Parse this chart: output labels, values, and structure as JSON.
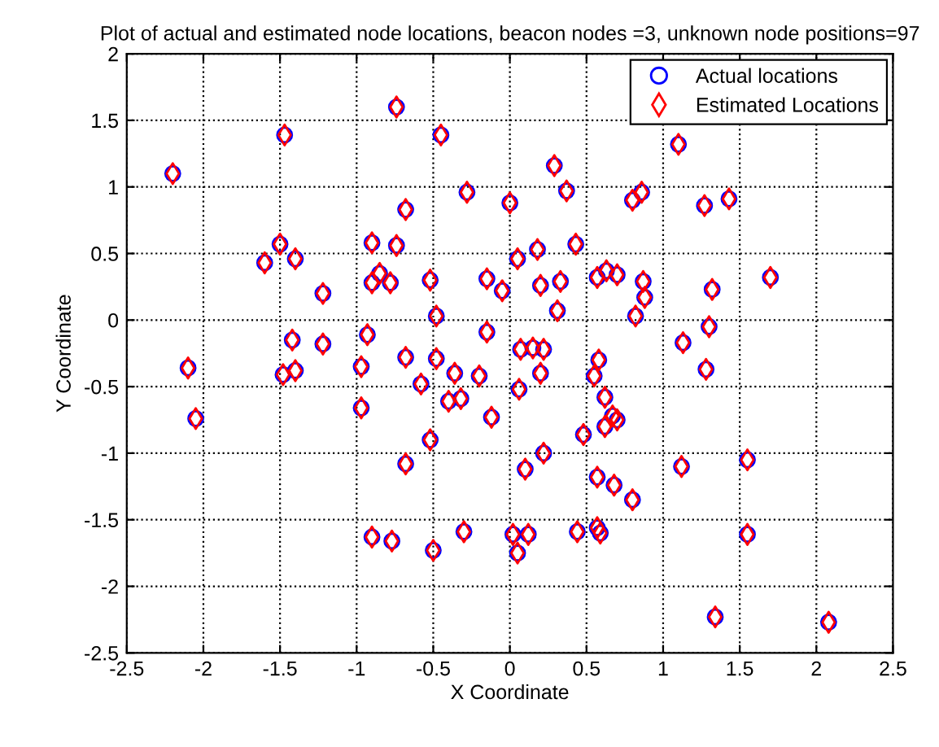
{
  "chart_data": {
    "type": "scatter",
    "title": "Plot of actual and estimated node locations, beacon nodes =3, unknown node positions=97",
    "xlabel": "X Coordinate",
    "ylabel": "Y Coordinate",
    "x": [
      -2.2,
      -1.47,
      -0.74,
      -0.45,
      -0.68,
      -0.28,
      0.0,
      0.29,
      0.37,
      0.8,
      0.86,
      1.1,
      1.27,
      1.43,
      -1.6,
      -1.5,
      -1.4,
      -1.22,
      -0.9,
      -0.85,
      -0.9,
      -0.78,
      -0.74,
      -0.52,
      -0.15,
      -0.05,
      0.05,
      0.18,
      0.2,
      0.33,
      0.43,
      0.31,
      0.57,
      0.63,
      0.7,
      0.87,
      0.88,
      0.82,
      1.7,
      1.32,
      1.3,
      1.13,
      1.28,
      -1.42,
      -1.48,
      -1.4,
      -1.22,
      -0.93,
      -0.97,
      -0.68,
      -0.48,
      -0.48,
      -0.36,
      -0.4,
      -0.32,
      -0.58,
      -0.2,
      -0.15,
      -0.12,
      0.07,
      0.15,
      0.22,
      0.2,
      0.06,
      0.55,
      0.58,
      0.48,
      0.62,
      0.67,
      0.62,
      -0.97,
      -0.68,
      -0.52,
      0.22,
      0.1,
      0.7,
      -2.1,
      -2.05,
      1.12,
      1.55,
      0.57,
      0.68,
      0.8,
      -0.9,
      -0.77,
      -0.5,
      -0.3,
      0.02,
      0.12,
      0.05,
      0.44,
      0.57,
      0.59,
      1.55,
      1.34,
      2.08
    ],
    "series": [
      {
        "name": "Actual locations",
        "color": "#0000ff",
        "marker": "circle",
        "values": [
          1.1,
          1.39,
          1.6,
          1.39,
          0.83,
          0.96,
          0.88,
          1.16,
          0.97,
          0.9,
          0.96,
          1.32,
          0.86,
          0.91,
          0.43,
          0.57,
          0.46,
          0.2,
          0.58,
          0.35,
          0.28,
          0.28,
          0.56,
          0.3,
          0.31,
          0.22,
          0.46,
          0.53,
          0.26,
          0.29,
          0.57,
          0.07,
          0.32,
          0.37,
          0.34,
          0.29,
          0.17,
          0.03,
          0.32,
          0.23,
          -0.05,
          -0.17,
          -0.37,
          -0.15,
          -0.41,
          -0.38,
          -0.18,
          -0.11,
          -0.35,
          -0.28,
          0.03,
          -0.29,
          -0.4,
          -0.61,
          -0.59,
          -0.48,
          -0.42,
          -0.09,
          -0.73,
          -0.22,
          -0.21,
          -0.22,
          -0.4,
          -0.52,
          -0.42,
          -0.3,
          -0.86,
          -0.58,
          -0.72,
          -0.8,
          -0.66,
          -1.08,
          -0.9,
          -1.0,
          -1.12,
          -0.75,
          -0.36,
          -0.74,
          -1.1,
          -1.05,
          -1.18,
          -1.24,
          -1.35,
          -1.63,
          -1.66,
          -1.73,
          -1.59,
          -1.61,
          -1.61,
          -1.75,
          -1.59,
          -1.56,
          -1.6,
          -1.61,
          -2.23,
          -2.27
        ]
      },
      {
        "name": "Estimated Locations",
        "color": "#ff0000",
        "marker": "diamond",
        "values": [
          1.1,
          1.39,
          1.6,
          1.39,
          0.83,
          0.96,
          0.88,
          1.16,
          0.97,
          0.9,
          0.96,
          1.32,
          0.86,
          0.91,
          0.43,
          0.57,
          0.46,
          0.2,
          0.58,
          0.35,
          0.28,
          0.28,
          0.56,
          0.3,
          0.31,
          0.22,
          0.46,
          0.53,
          0.26,
          0.29,
          0.57,
          0.07,
          0.32,
          0.37,
          0.34,
          0.29,
          0.17,
          0.03,
          0.32,
          0.23,
          -0.05,
          -0.17,
          -0.37,
          -0.15,
          -0.41,
          -0.38,
          -0.18,
          -0.11,
          -0.35,
          -0.28,
          0.03,
          -0.29,
          -0.4,
          -0.61,
          -0.59,
          -0.48,
          -0.42,
          -0.09,
          -0.73,
          -0.22,
          -0.21,
          -0.22,
          -0.4,
          -0.52,
          -0.42,
          -0.3,
          -0.86,
          -0.58,
          -0.72,
          -0.8,
          -0.66,
          -1.08,
          -0.9,
          -1.0,
          -1.12,
          -0.75,
          -0.36,
          -0.74,
          -1.1,
          -1.05,
          -1.18,
          -1.24,
          -1.35,
          -1.63,
          -1.66,
          -1.73,
          -1.59,
          -1.61,
          -1.61,
          -1.75,
          -1.59,
          -1.56,
          -1.6,
          -1.61,
          -2.23,
          -2.27
        ]
      }
    ],
    "xlim": [
      -2.5,
      2.5
    ],
    "xticks": [
      -2.5,
      -2,
      -1.5,
      -1,
      -0.5,
      0,
      0.5,
      1,
      1.5,
      2,
      2.5
    ],
    "ylim": [
      -2.5,
      2
    ],
    "yticks": [
      -2.5,
      -2,
      -1.5,
      -1,
      -0.5,
      0,
      0.5,
      1,
      1.5,
      2
    ],
    "grid": true,
    "legend": "top right"
  }
}
